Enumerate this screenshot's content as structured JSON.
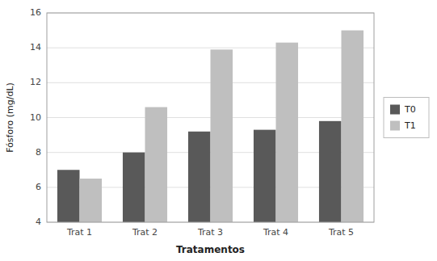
{
  "chart_data": {
    "type": "bar",
    "xlabel": "Tratamentos",
    "ylabel": "Fósforo (mg/dL)",
    "categories": [
      "Trat 1",
      "Trat 2",
      "Trat 3",
      "Trat 4",
      "Trat 5"
    ],
    "series": [
      {
        "name": "T0",
        "color": "#595959",
        "values": [
          7.0,
          8.0,
          9.2,
          9.3,
          9.8
        ]
      },
      {
        "name": "T1",
        "color": "#bfbfbf",
        "values": [
          6.5,
          10.6,
          13.9,
          14.3,
          15.0
        ]
      }
    ],
    "ylim": [
      4,
      16
    ],
    "yticks": [
      4,
      6,
      8,
      10,
      12,
      14,
      16
    ],
    "grid": true,
    "legend": "right"
  }
}
